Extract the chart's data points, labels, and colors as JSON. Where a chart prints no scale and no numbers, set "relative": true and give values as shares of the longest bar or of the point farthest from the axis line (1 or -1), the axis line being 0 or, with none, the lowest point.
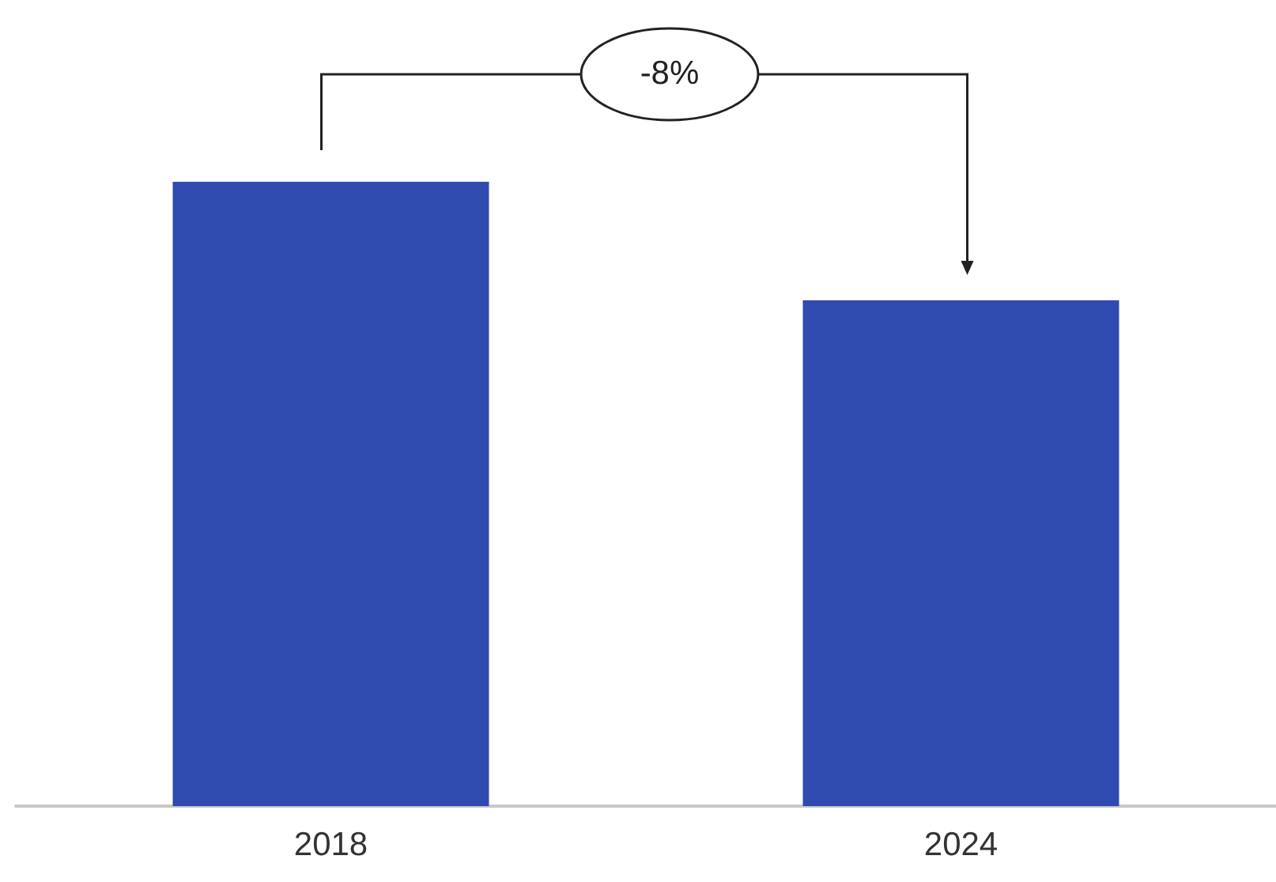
{
  "chart_data": {
    "type": "bar",
    "relative": true,
    "categories": [
      "2018",
      "2024"
    ],
    "values": [
      1,
      0.81
    ],
    "color": "#2f4bb0",
    "annotations": [
      "-8%"
    ]
  }
}
